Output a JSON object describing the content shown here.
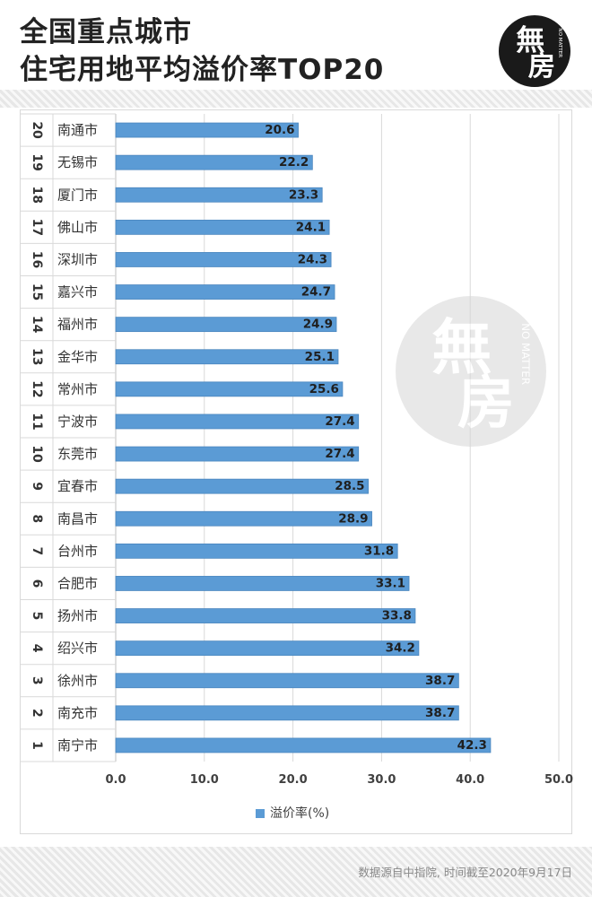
{
  "header": {
    "title_line1": "全国重点城市",
    "title_line2": "住宅用地平均溢价率TOP20"
  },
  "logo": {
    "main_char": "無",
    "sub_char": "房",
    "side_text": "NO MATTER"
  },
  "footer": {
    "source": "数据源自中指院, 时间截至2020年9月17日"
  },
  "colors": {
    "bar": "#5b9bd5",
    "title": "#222222",
    "logo_bg": "#1a1a1a"
  },
  "chart_data": {
    "type": "bar",
    "orientation": "horizontal",
    "categories": [
      "20",
      "19",
      "18",
      "17",
      "16",
      "15",
      "14",
      "13",
      "12",
      "11",
      "10",
      "9",
      "8",
      "7",
      "6",
      "5",
      "4",
      "3",
      "2",
      "1"
    ],
    "cities": [
      "南通市",
      "无锡市",
      "厦门市",
      "佛山市",
      "深圳市",
      "嘉兴市",
      "福州市",
      "金华市",
      "常州市",
      "宁波市",
      "东莞市",
      "宜春市",
      "南昌市",
      "台州市",
      "合肥市",
      "扬州市",
      "绍兴市",
      "徐州市",
      "南充市",
      "南宁市"
    ],
    "series": [
      {
        "name": "溢价率(%)",
        "values": [
          20.6,
          22.2,
          23.3,
          24.1,
          24.3,
          24.7,
          24.9,
          25.1,
          25.6,
          27.4,
          27.4,
          28.5,
          28.9,
          31.8,
          33.1,
          33.8,
          34.2,
          38.7,
          38.7,
          42.3
        ],
        "value_labels": [
          "20.6",
          "22.2",
          "23.3",
          "24.1",
          "24.3",
          "24.7",
          "24.9",
          "25.1",
          "25.6",
          "27.4",
          "27.4",
          "28.5",
          "28.9",
          "31.8",
          "33.1",
          "33.8",
          "34.2",
          "38.7",
          "38.7",
          "42.3"
        ]
      }
    ],
    "xlim": [
      0,
      50
    ],
    "x_ticks": [
      "0.0",
      "10.0",
      "20.0",
      "30.0",
      "40.0",
      "50.0"
    ],
    "grid": true,
    "legend_position": "bottom"
  }
}
